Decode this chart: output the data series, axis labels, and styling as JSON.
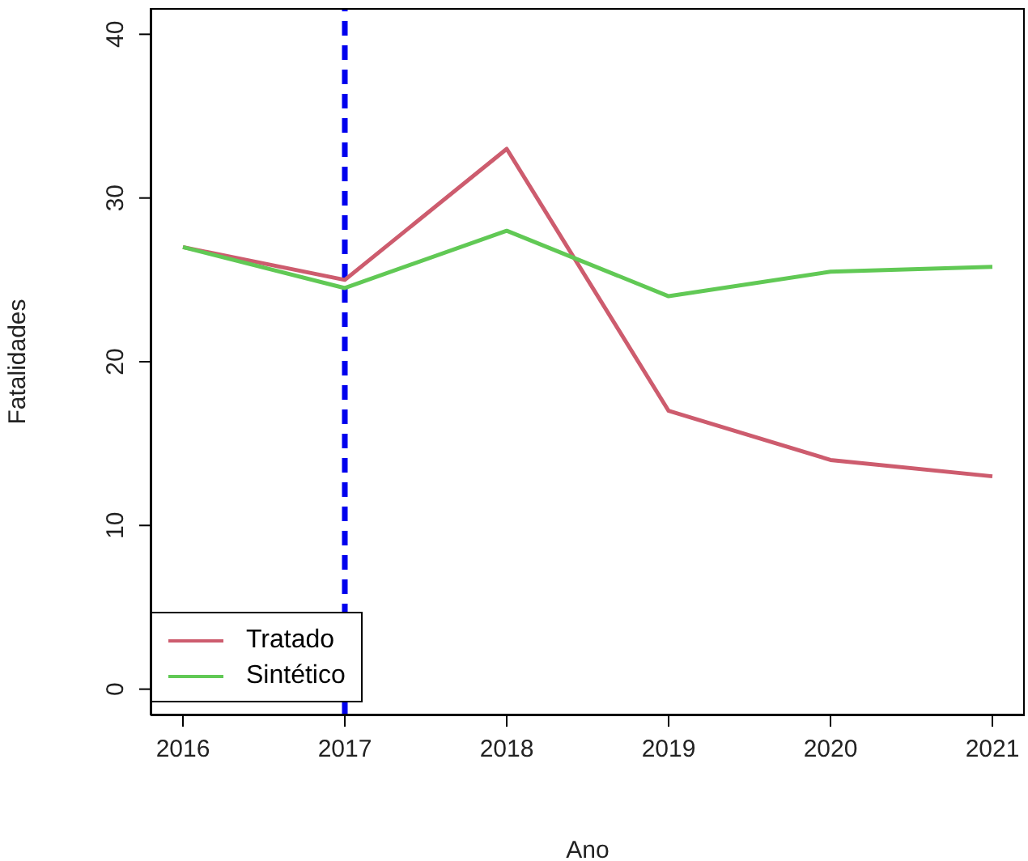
{
  "chart_data": {
    "type": "line",
    "xlabel": "Ano",
    "ylabel": "Fatalidades",
    "x": [
      2016,
      2017,
      2018,
      2019,
      2020,
      2021
    ],
    "series": [
      {
        "name": "Tratado",
        "color": "#cd5c6e",
        "values": [
          27,
          25,
          33,
          17,
          14,
          13
        ]
      },
      {
        "name": "Sintético",
        "color": "#61c955",
        "values": [
          27,
          24.5,
          28,
          24,
          25.5,
          25.8
        ]
      }
    ],
    "xlim": [
      2015.8,
      2021.2
    ],
    "xticks": [
      2016,
      2017,
      2018,
      2019,
      2020,
      2021
    ],
    "ylim": [
      -1.6,
      41.6
    ],
    "yticks": [
      0,
      10,
      20,
      30,
      40
    ],
    "ref_lines": [
      {
        "axis": "x",
        "value": 2017,
        "color": "#0000ee",
        "line_style": "dashed"
      }
    ],
    "legend": "bottom left",
    "grid": false,
    "marker": "none",
    "line_style": "solid"
  }
}
